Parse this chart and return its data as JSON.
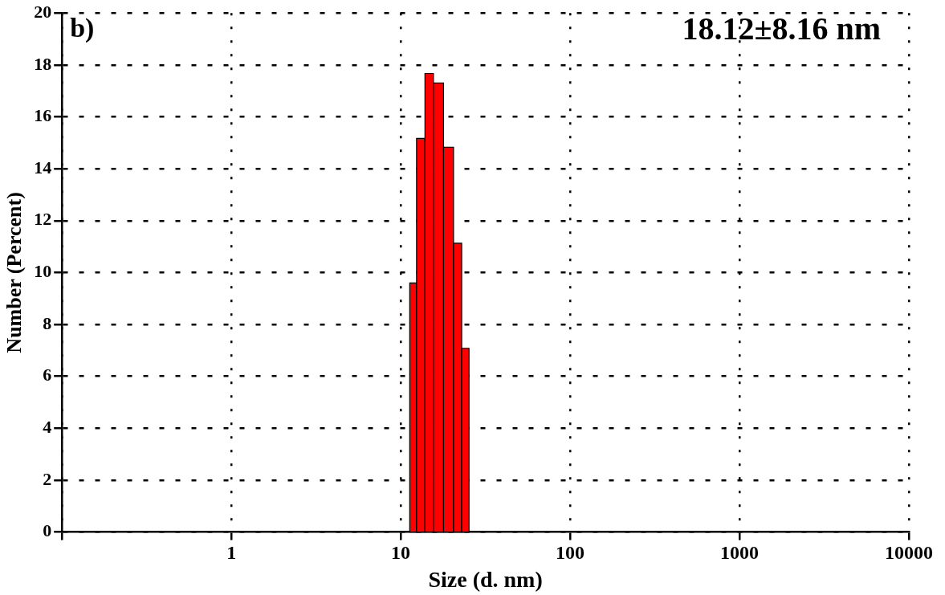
{
  "chart_data": {
    "type": "histogram",
    "xlabel": "Size (d. nm)",
    "ylabel": "Number (Percent)",
    "bins": [
      11.3,
      12.4,
      13.9,
      15.6,
      17.9,
      20.5,
      22.9,
      25.3
    ],
    "values": [
      9.6,
      15.17,
      17.67,
      17.3,
      14.83,
      11.13,
      7.08
    ],
    "color": "#ff0000",
    "log": "x",
    "xlim": [
      0.1,
      10000
    ],
    "xticks": [
      {
        "value": 0.1,
        "label": null
      },
      1,
      10,
      100,
      1000,
      10000
    ],
    "ylim": [
      0,
      20
    ],
    "yticks": [
      0,
      2,
      4,
      6,
      8,
      10,
      12,
      14,
      16,
      18,
      20
    ],
    "grid": true,
    "legend": false,
    "annotations": [
      "b)",
      "18.12±8.16 nm"
    ]
  }
}
